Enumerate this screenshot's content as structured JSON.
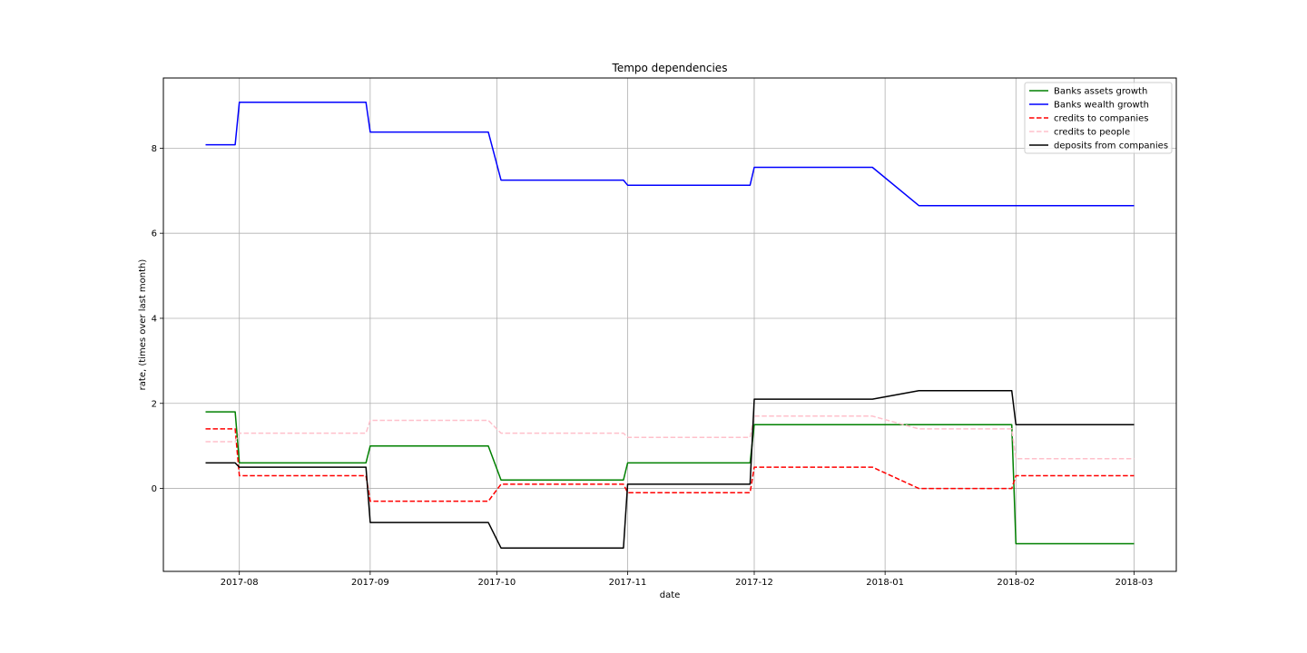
{
  "chart_data": {
    "type": "line",
    "title": "Tempo dependencies",
    "xlabel": "date",
    "ylabel": "rate, (times over last month)",
    "x_ticks": [
      "2017-08",
      "2017-09",
      "2017-10",
      "2017-11",
      "2017-12",
      "2018-01",
      "2018-02",
      "2018-03"
    ],
    "y_ticks": [
      0,
      2,
      4,
      6,
      8
    ],
    "xlim": [
      "2017-07-14",
      "2018-03-11"
    ],
    "ylim": [
      -1.95,
      9.65
    ],
    "grid": true,
    "legend_position": "top-right",
    "series": [
      {
        "name": "Banks assets growth",
        "color": "#008000",
        "dash": "solid",
        "points": [
          [
            "2017-07-24",
            1.8
          ],
          [
            "2017-07-31",
            1.8
          ],
          [
            "2017-08-01",
            0.6
          ],
          [
            "2017-08-31",
            0.6
          ],
          [
            "2017-09-01",
            1.0
          ],
          [
            "2017-09-29",
            1.0
          ],
          [
            "2017-10-02",
            0.2
          ],
          [
            "2017-10-31",
            0.2
          ],
          [
            "2017-11-01",
            0.6
          ],
          [
            "2017-11-30",
            0.6
          ],
          [
            "2017-12-01",
            1.5
          ],
          [
            "2018-01-31",
            1.5
          ],
          [
            "2018-02-01",
            -1.3
          ],
          [
            "2018-03-01",
            -1.3
          ]
        ]
      },
      {
        "name": "Banks wealth growth",
        "color": "#0000ff",
        "dash": "solid",
        "points": [
          [
            "2017-07-24",
            8.08
          ],
          [
            "2017-07-31",
            8.08
          ],
          [
            "2017-08-01",
            9.08
          ],
          [
            "2017-08-31",
            9.08
          ],
          [
            "2017-09-01",
            8.38
          ],
          [
            "2017-09-29",
            8.38
          ],
          [
            "2017-10-02",
            7.25
          ],
          [
            "2017-10-31",
            7.25
          ],
          [
            "2017-11-01",
            7.13
          ],
          [
            "2017-11-30",
            7.13
          ],
          [
            "2017-12-01",
            7.55
          ],
          [
            "2017-12-29",
            7.55
          ],
          [
            "2018-01-09",
            6.65
          ],
          [
            "2018-03-01",
            6.65
          ]
        ]
      },
      {
        "name": "credits to companies",
        "color": "#ff0000",
        "dash": "dashed",
        "points": [
          [
            "2017-07-24",
            1.4
          ],
          [
            "2017-07-31",
            1.4
          ],
          [
            "2017-08-01",
            0.3
          ],
          [
            "2017-08-31",
            0.3
          ],
          [
            "2017-09-01",
            -0.3
          ],
          [
            "2017-09-29",
            -0.3
          ],
          [
            "2017-10-02",
            0.1
          ],
          [
            "2017-10-31",
            0.1
          ],
          [
            "2017-11-01",
            -0.1
          ],
          [
            "2017-11-30",
            -0.1
          ],
          [
            "2017-12-01",
            0.5
          ],
          [
            "2017-12-29",
            0.5
          ],
          [
            "2018-01-09",
            0.0
          ],
          [
            "2018-01-31",
            0.0
          ],
          [
            "2018-02-01",
            0.3
          ],
          [
            "2018-03-01",
            0.3
          ]
        ]
      },
      {
        "name": "credits to people",
        "color": "#ffc0cb",
        "dash": "dashed",
        "points": [
          [
            "2017-07-24",
            1.1
          ],
          [
            "2017-07-31",
            1.1
          ],
          [
            "2017-08-01",
            1.3
          ],
          [
            "2017-08-31",
            1.3
          ],
          [
            "2017-09-01",
            1.6
          ],
          [
            "2017-09-29",
            1.6
          ],
          [
            "2017-10-02",
            1.3
          ],
          [
            "2017-10-31",
            1.3
          ],
          [
            "2017-11-01",
            1.2
          ],
          [
            "2017-11-30",
            1.2
          ],
          [
            "2017-12-01",
            1.7
          ],
          [
            "2017-12-29",
            1.7
          ],
          [
            "2018-01-09",
            1.4
          ],
          [
            "2018-01-31",
            1.4
          ],
          [
            "2018-02-01",
            0.7
          ],
          [
            "2018-03-01",
            0.7
          ]
        ]
      },
      {
        "name": "deposits from companies",
        "color": "#000000",
        "dash": "solid",
        "points": [
          [
            "2017-07-24",
            0.6
          ],
          [
            "2017-07-31",
            0.6
          ],
          [
            "2017-08-01",
            0.5
          ],
          [
            "2017-08-31",
            0.5
          ],
          [
            "2017-09-01",
            -0.8
          ],
          [
            "2017-09-29",
            -0.8
          ],
          [
            "2017-10-02",
            -1.4
          ],
          [
            "2017-10-31",
            -1.4
          ],
          [
            "2017-11-01",
            0.1
          ],
          [
            "2017-11-30",
            0.1
          ],
          [
            "2017-12-01",
            2.1
          ],
          [
            "2017-12-29",
            2.1
          ],
          [
            "2018-01-09",
            2.3
          ],
          [
            "2018-01-31",
            2.3
          ],
          [
            "2018-02-01",
            1.5
          ],
          [
            "2018-03-01",
            1.5
          ]
        ]
      }
    ]
  }
}
